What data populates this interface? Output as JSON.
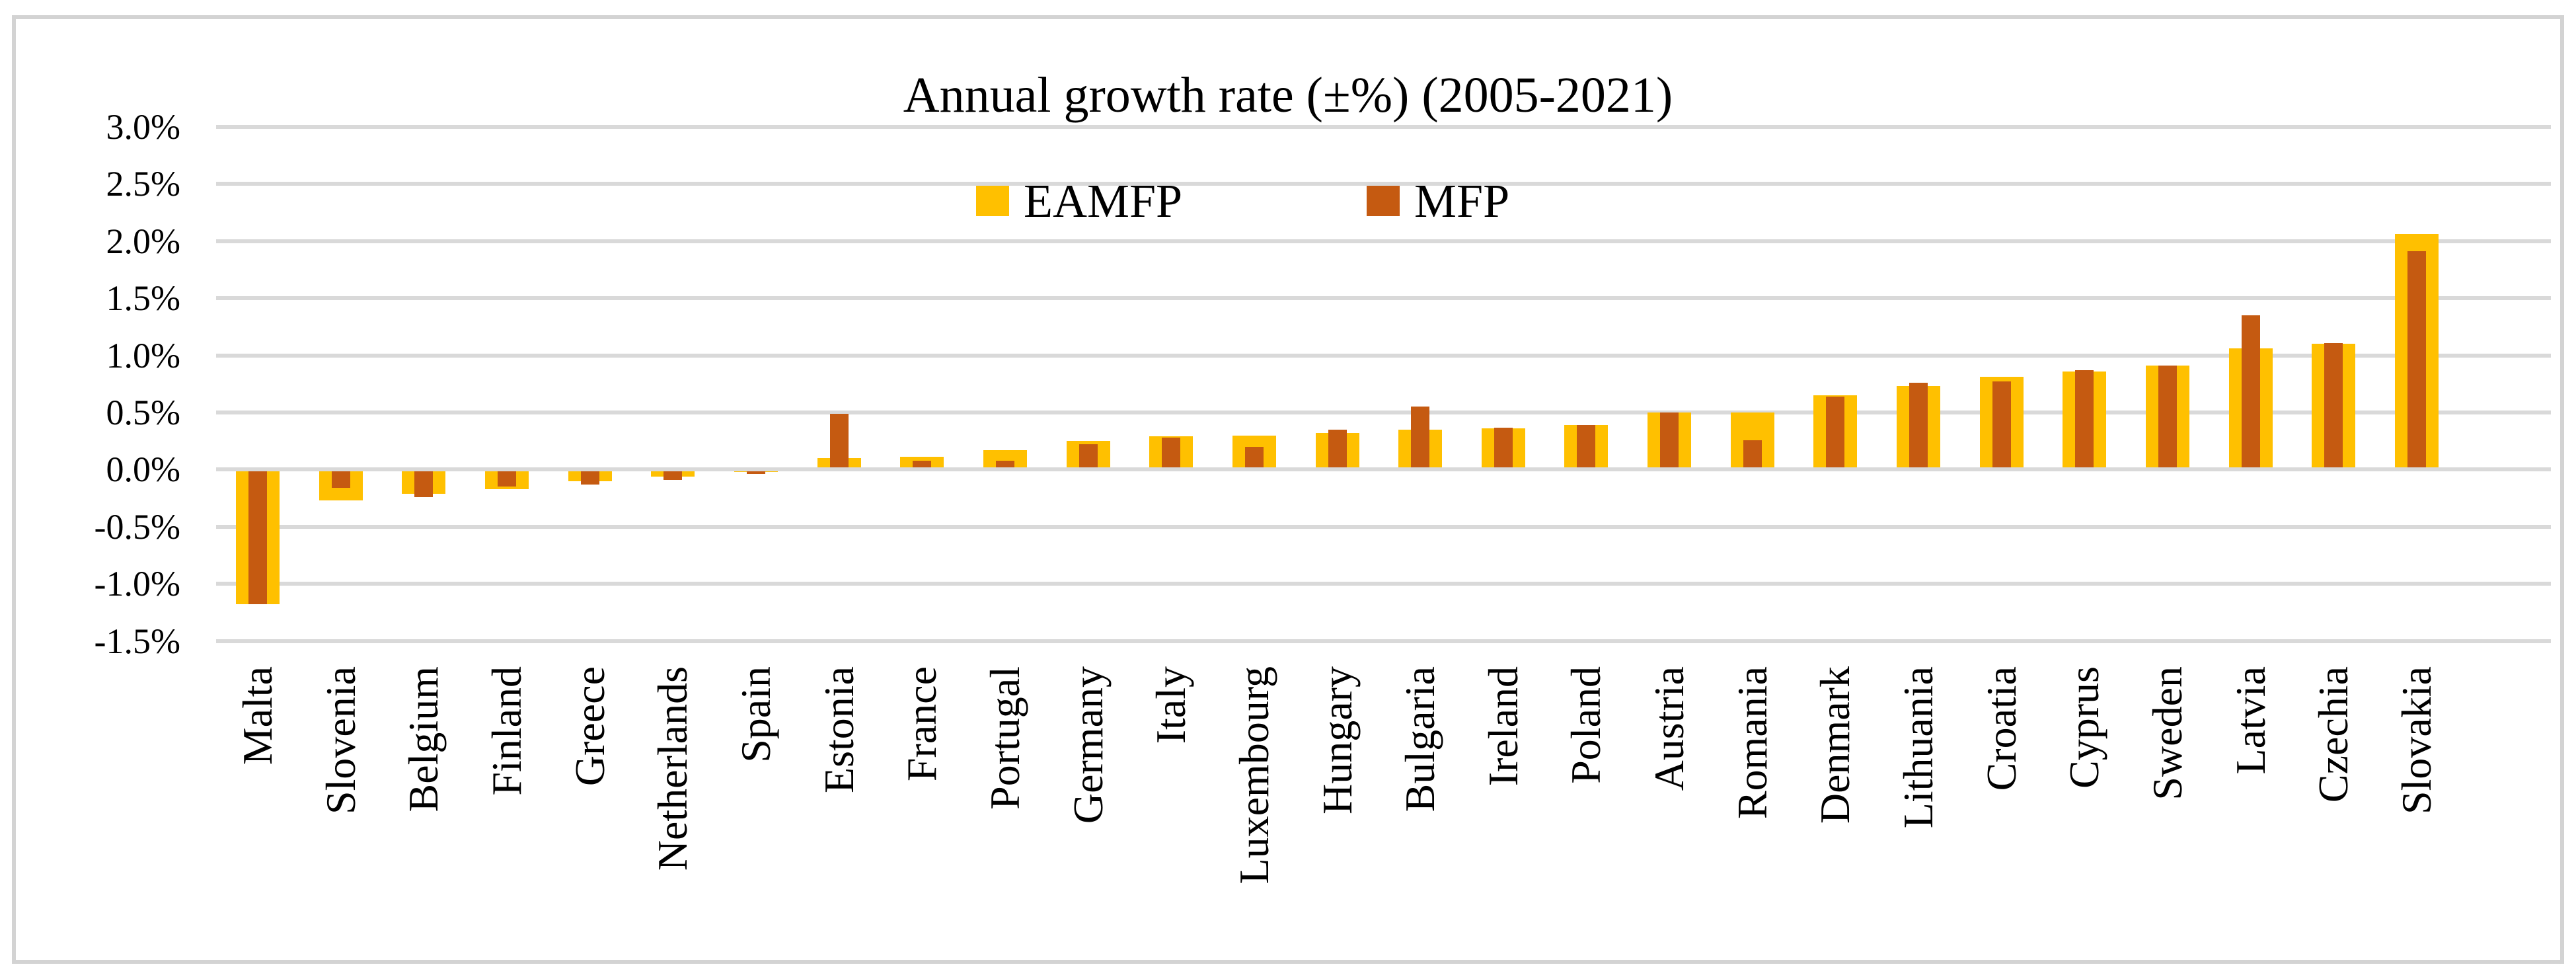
{
  "figure": {
    "title": "Annual growth rate (±%) (2005-2021)"
  },
  "legend": {
    "items": [
      {
        "label": "EAMFP",
        "color": "#FFC000"
      },
      {
        "label": "MFP",
        "color": "#C55A11"
      }
    ]
  },
  "chart_data": {
    "type": "bar",
    "title": "Annual growth rate (±%) (2005-2021)",
    "categories": [
      "Malta",
      "Slovenia",
      "Belgium",
      "Finland",
      "Greece",
      "Netherlands",
      "Spain",
      "Estonia",
      "France",
      "Portugal",
      "Germany",
      "Italy",
      "Luxembourg",
      "Hungary",
      "Bulgaria",
      "Ireland",
      "Poland",
      "Austria",
      "Romania",
      "Denmark",
      "Lithuania",
      "Croatia",
      "Cyprus",
      "Sweden",
      "Latvia",
      "Czechia",
      "Slovakia"
    ],
    "series": [
      {
        "name": "EAMFP",
        "color": "#FFC000",
        "values": [
          -1.18,
          -0.27,
          -0.21,
          -0.17,
          -0.1,
          -0.06,
          -0.02,
          0.1,
          0.11,
          0.17,
          0.25,
          0.29,
          0.3,
          0.32,
          0.35,
          0.36,
          0.39,
          0.5,
          0.5,
          0.65,
          0.73,
          0.81,
          0.86,
          0.91,
          1.06,
          1.1,
          2.06
        ]
      },
      {
        "name": "MFP",
        "color": "#C55A11",
        "values": [
          -1.18,
          -0.16,
          -0.24,
          -0.15,
          -0.13,
          -0.09,
          -0.04,
          0.49,
          0.08,
          0.08,
          0.22,
          0.28,
          0.2,
          0.35,
          0.55,
          0.37,
          0.39,
          0.5,
          0.26,
          0.64,
          0.76,
          0.77,
          0.87,
          0.91,
          1.35,
          1.11,
          1.91
        ]
      }
    ],
    "ylim": [
      -1.5,
      3.0
    ],
    "ytick_labels": [
      "3.0%",
      "2.5%",
      "2.0%",
      "1.5%",
      "1.0%",
      "0.5%",
      "0.0%",
      "-0.5%",
      "-1.0%",
      "-1.5%"
    ],
    "xlabel": "",
    "ylabel": "",
    "grid": true,
    "legend_position": "top-inside",
    "bar_style": "overlapped-centered"
  },
  "colors": {
    "gridline": "#D9D9D9",
    "frame_border": "#D3D3D3",
    "background": "#FFFFFF",
    "text": "#000000"
  }
}
